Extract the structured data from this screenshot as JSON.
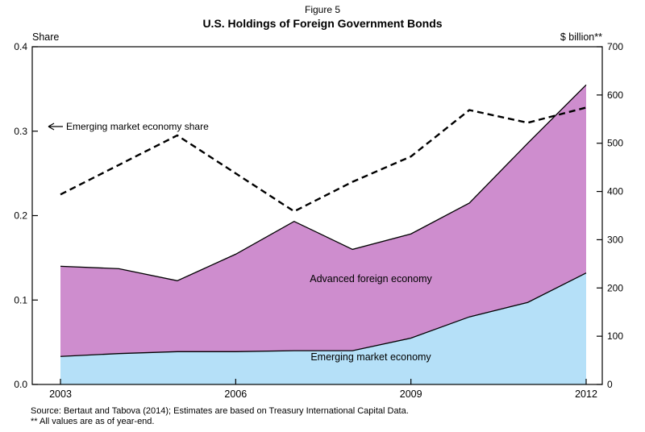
{
  "figure": {
    "figure_label": "Figure 5",
    "title": "U.S. Holdings of Foreign Government Bonds",
    "left_axis_label": "Share",
    "right_axis_label": "$ billion**",
    "annotation": "Emerging market economy share",
    "area_label_advanced": "Advanced foreign economy",
    "area_label_emerging": "Emerging market economy",
    "source_line1": "Source: Bertaut and Tabova (2014); Estimates are based on Treasury International Capital Data.",
    "source_line2": "** All values are as of year-end."
  },
  "colors": {
    "advanced_fill": "#CE8DCE",
    "emerging_fill": "#B5E0F8",
    "line": "#000000"
  },
  "chart_data": {
    "type": "area",
    "title": "U.S. Holdings of Foreign Government Bonds",
    "x": [
      2003,
      2004,
      2005,
      2006,
      2007,
      2008,
      2009,
      2010,
      2011,
      2012
    ],
    "series": [
      {
        "name": "Emerging market economy",
        "type": "stacked-area",
        "axis": "right",
        "unit": "$ billion",
        "values": [
          58,
          64,
          68,
          68,
          70,
          70,
          96,
          140,
          170,
          231
        ]
      },
      {
        "name": "Advanced foreign economy",
        "type": "stacked-area",
        "axis": "right",
        "unit": "$ billion",
        "values": [
          187,
          176,
          147,
          202,
          268,
          210,
          216,
          236,
          330,
          390
        ]
      },
      {
        "name": "Emerging market economy share",
        "type": "dashed-line",
        "axis": "left",
        "unit": "share",
        "values": [
          0.225,
          0.26,
          0.295,
          0.25,
          0.205,
          0.24,
          0.27,
          0.325,
          0.31,
          0.328
        ]
      }
    ],
    "left_axis": {
      "label": "Share",
      "range": [
        0,
        0.4
      ],
      "ticks": [
        0,
        0.1,
        0.2,
        0.3,
        0.4
      ],
      "tick_labels": [
        "0.0",
        "0.1",
        "0.2",
        "0.3",
        "0.4"
      ]
    },
    "right_axis": {
      "label": "$ billion**",
      "range": [
        0,
        700
      ],
      "ticks": [
        0,
        100,
        200,
        300,
        400,
        500,
        600,
        700
      ],
      "tick_labels": [
        "0",
        "100",
        "200",
        "300",
        "400",
        "500",
        "600",
        "700"
      ]
    },
    "x_ticks": [
      2003,
      2006,
      2009,
      2012
    ],
    "x_tick_labels": [
      "2003",
      "2006",
      "2009",
      "2012"
    ],
    "grid": false,
    "legend_position": "in-chart-labels"
  }
}
